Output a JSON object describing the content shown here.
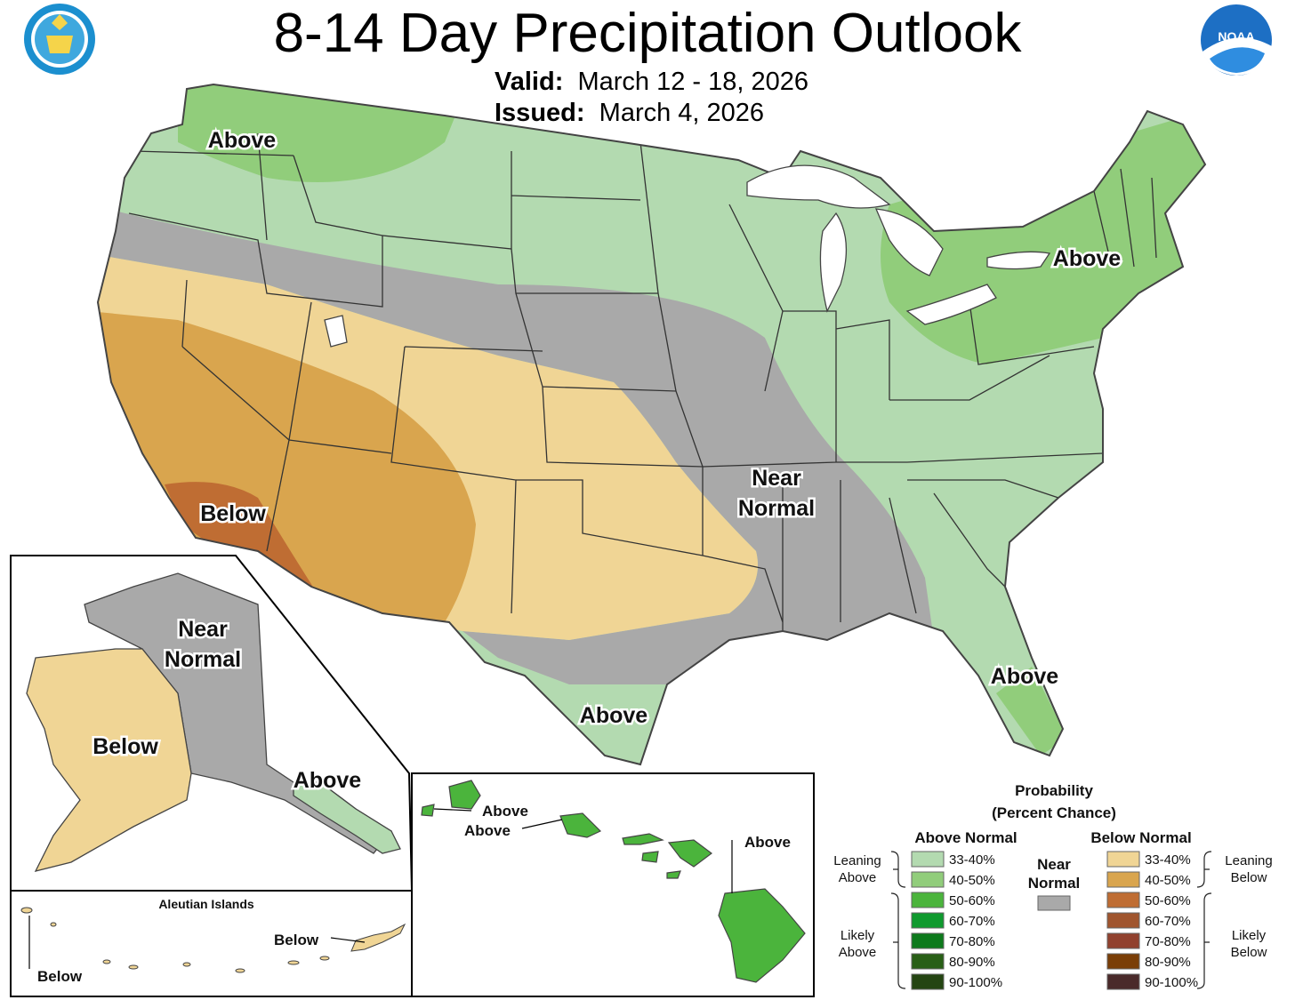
{
  "title": "8-14 Day Precipitation Outlook",
  "valid_label": "Valid:",
  "valid_dates": "March 12 - 18, 2026",
  "issued_label": "Issued:",
  "issued_date": "March 4, 2026",
  "logos": {
    "commerce": "DEPARTMENT OF COMMERCE · UNITED STATES OF AMERICA",
    "noaa": "NOAA"
  },
  "regions": {
    "conus_labels": [
      "Above",
      "Above",
      "Below",
      "Near",
      "Normal",
      "Above",
      "Above"
    ],
    "alaska_labels": [
      "Near",
      "Normal",
      "Below",
      "Above"
    ],
    "aleutian_title": "Aleutian Islands",
    "aleutian_labels": [
      "Below",
      "Below"
    ],
    "hawaii_labels": [
      "Above",
      "Above",
      "Above"
    ]
  },
  "legend": {
    "title_line1": "Probability",
    "title_line2": "(Percent Chance)",
    "above_head": "Above Normal",
    "below_head": "Below Normal",
    "near_head_1": "Near",
    "near_head_2": "Normal",
    "leaning_above_1": "Leaning",
    "leaning_above_2": "Above",
    "likely_above_1": "Likely",
    "likely_above_2": "Above",
    "leaning_below_1": "Leaning",
    "leaning_below_2": "Below",
    "likely_below_1": "Likely",
    "likely_below_2": "Below",
    "above": [
      {
        "range": "33-40%",
        "color": "#b3dab0"
      },
      {
        "range": "40-50%",
        "color": "#91cd7b"
      },
      {
        "range": "50-60%",
        "color": "#4bb43c"
      },
      {
        "range": "60-70%",
        "color": "#0f9a2e"
      },
      {
        "range": "70-80%",
        "color": "#0d7a1c"
      },
      {
        "range": "80-90%",
        "color": "#285f16"
      },
      {
        "range": "90-100%",
        "color": "#244512"
      }
    ],
    "near_color": "#a9a9a9",
    "below": [
      {
        "range": "33-40%",
        "color": "#f0d595"
      },
      {
        "range": "40-50%",
        "color": "#d9a54e"
      },
      {
        "range": "50-60%",
        "color": "#bf6d33"
      },
      {
        "range": "60-70%",
        "color": "#a0552e"
      },
      {
        "range": "70-80%",
        "color": "#91412e"
      },
      {
        "range": "80-90%",
        "color": "#7a3e07"
      },
      {
        "range": "90-100%",
        "color": "#4a2a2a"
      }
    ]
  }
}
